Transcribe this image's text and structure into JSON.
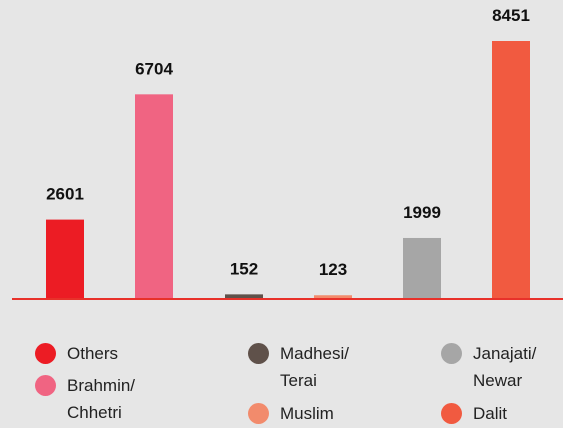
{
  "chart_data": {
    "type": "bar",
    "categories": [
      "Others",
      "Brahmin/ Chhetri",
      "Madhesi/ Terai",
      "Muslim",
      "Janajati/ Newar",
      "Dalit"
    ],
    "values": [
      2601,
      6704,
      152,
      123,
      1999,
      8451
    ],
    "colors": [
      "#ec1c24",
      "#f06482",
      "#5f514a",
      "#f28b6c",
      "#a6a6a6",
      "#f15a40"
    ]
  }
}
